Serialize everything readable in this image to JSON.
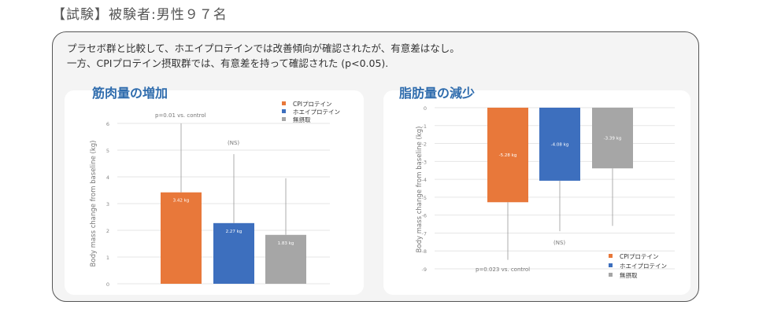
{
  "header": {
    "title": "【試験】被験者:男性９７名"
  },
  "panel": {
    "desc_line1": "プラセボ群と比較して、ホエイプロテインでは改善傾向が確認されたが、有意差はなし。",
    "desc_line2": "一方、CPIプロテイン摂取群では、有意差を持って確認された (p<0.05)."
  },
  "colors": {
    "cpi": "#e8783a",
    "whey": "#3d6fbe",
    "none": "#a6a6a6",
    "title": "#2f6cad"
  },
  "chart_data": [
    {
      "type": "bar",
      "title": "筋肉量の増加",
      "ylabel": "Body mass change from baseline (kg)",
      "ylim": [
        0,
        6
      ],
      "yticks": [
        "0",
        "1",
        "2",
        "3",
        "4",
        "5",
        "6"
      ],
      "categories": [
        "CPIプロテイン",
        "ホエイプロテイン",
        "無摂取"
      ],
      "values": [
        3.42,
        2.27,
        1.83
      ],
      "error_top": [
        6.0,
        4.85,
        3.95
      ],
      "value_labels": [
        "3.42 kg",
        "2.27 kg",
        "1.83 kg"
      ],
      "legend": [
        "CPIプロテイン",
        "ホエイプロテイン",
        "無摂取"
      ],
      "legend_position": "top-right",
      "annotations": [
        "p=0.01 vs. control",
        "(NS)"
      ]
    },
    {
      "type": "bar",
      "title": "脂肪量の減少",
      "ylabel": "Body mass change from baseline (kg)",
      "ylim": [
        -9,
        0
      ],
      "yticks": [
        "0",
        "-1",
        "-2",
        "-3",
        "-4",
        "-5",
        "-6",
        "-7",
        "-8",
        "-9"
      ],
      "categories": [
        "CPIプロテイン",
        "ホエイプロテイン",
        "無摂取"
      ],
      "values": [
        -5.28,
        -4.08,
        -3.39
      ],
      "error_bottom": [
        -8.5,
        -6.9,
        -6.6
      ],
      "value_labels": [
        "-5.28 kg",
        "-4.08 kg",
        "-3.39 kg"
      ],
      "legend": [
        "CPIプロテイン",
        "ホエイプロテイン",
        "無摂取"
      ],
      "legend_position": "bottom-right",
      "annotations": [
        "p=0.023 vs. control",
        "(NS)"
      ]
    }
  ]
}
